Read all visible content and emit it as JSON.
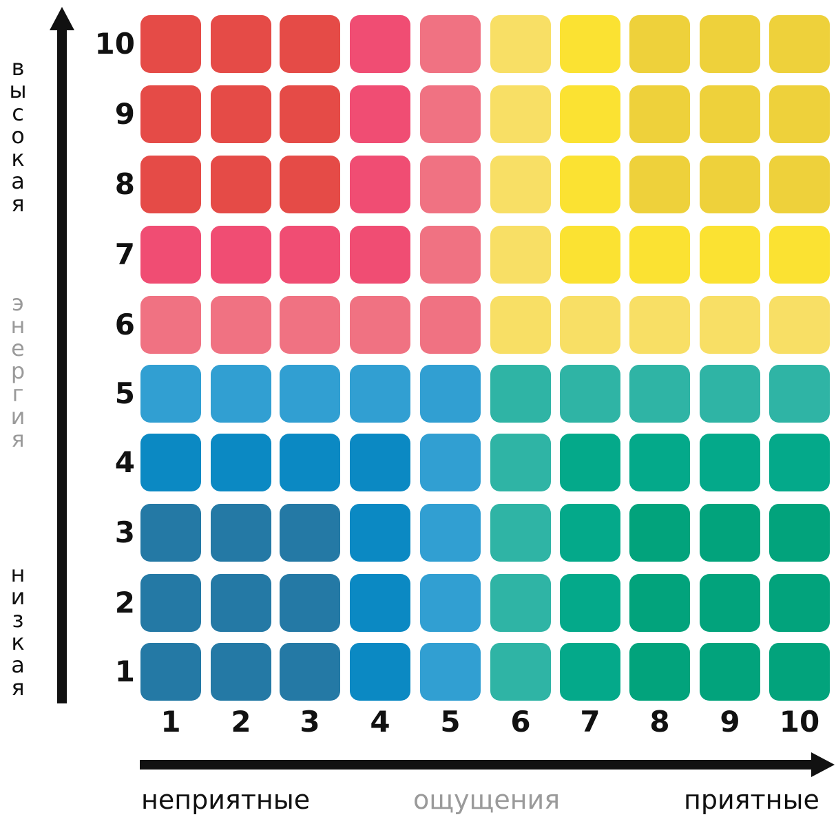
{
  "x_axis": {
    "left_word": "неприятные",
    "center_word": "ощущения",
    "right_word": "приятные",
    "ticks": [
      "1",
      "2",
      "3",
      "4",
      "5",
      "6",
      "7",
      "8",
      "9",
      "10"
    ]
  },
  "y_axis": {
    "top_word": "высокая",
    "center_word": "энергия",
    "bottom_word": "низкая",
    "ticks": [
      "1",
      "2",
      "3",
      "4",
      "5",
      "6",
      "7",
      "8",
      "9",
      "10"
    ]
  },
  "colors": {
    "red": "#e54b47",
    "pink": "#f04d73",
    "light_pink": "#f07282",
    "light_yellow": "#f8df65",
    "yellow": "#fbe232",
    "mustard": "#eed13b",
    "light_blue": "#319fd2",
    "blue": "#0b89c3",
    "steel_blue": "#2479a5",
    "teal": "#2fb4a5",
    "green": "#04a98a",
    "dark_green": "#02a37c"
  },
  "grid": [
    [
      "red",
      "red",
      "red",
      "pink",
      "light_pink",
      "light_yellow",
      "yellow",
      "mustard",
      "mustard",
      "mustard"
    ],
    [
      "red",
      "red",
      "red",
      "pink",
      "light_pink",
      "light_yellow",
      "yellow",
      "mustard",
      "mustard",
      "mustard"
    ],
    [
      "red",
      "red",
      "red",
      "pink",
      "light_pink",
      "light_yellow",
      "yellow",
      "mustard",
      "mustard",
      "mustard"
    ],
    [
      "pink",
      "pink",
      "pink",
      "pink",
      "light_pink",
      "light_yellow",
      "yellow",
      "yellow",
      "yellow",
      "yellow"
    ],
    [
      "light_pink",
      "light_pink",
      "light_pink",
      "light_pink",
      "light_pink",
      "light_yellow",
      "light_yellow",
      "light_yellow",
      "light_yellow",
      "light_yellow"
    ],
    [
      "light_blue",
      "light_blue",
      "light_blue",
      "light_blue",
      "light_blue",
      "teal",
      "teal",
      "teal",
      "teal",
      "teal"
    ],
    [
      "blue",
      "blue",
      "blue",
      "blue",
      "light_blue",
      "teal",
      "green",
      "green",
      "green",
      "green"
    ],
    [
      "steel_blue",
      "steel_blue",
      "steel_blue",
      "blue",
      "light_blue",
      "teal",
      "green",
      "dark_green",
      "dark_green",
      "dark_green"
    ],
    [
      "steel_blue",
      "steel_blue",
      "steel_blue",
      "blue",
      "light_blue",
      "teal",
      "green",
      "dark_green",
      "dark_green",
      "dark_green"
    ],
    [
      "steel_blue",
      "steel_blue",
      "steel_blue",
      "blue",
      "light_blue",
      "teal",
      "green",
      "dark_green",
      "dark_green",
      "dark_green"
    ]
  ]
}
